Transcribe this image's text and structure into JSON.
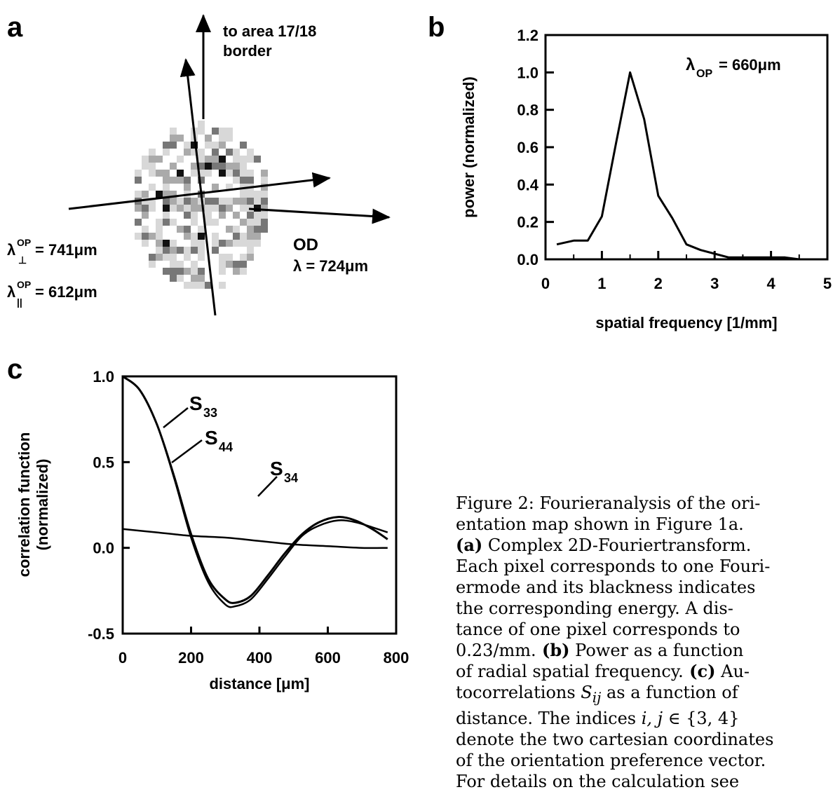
{
  "panel_a": {
    "letter": "a",
    "arrow_top_label": [
      "to area 17/18",
      "border"
    ],
    "od_label": "OD",
    "od_lambda": "λ = 724μm",
    "lambda_perp": {
      "main": "λ",
      "sup": "OP",
      "sub": "⊥",
      "value": " = 741μm"
    },
    "lambda_par": {
      "main": "λ",
      "sup": "OP",
      "sub": "||",
      "value": " = 612μm"
    }
  },
  "panel_b": {
    "letter": "b",
    "annotation": {
      "main": "λ",
      "sub": "OP",
      "value": " = 660μm"
    }
  },
  "panel_c": {
    "letter": "c",
    "curve_labels": {
      "s33": "S",
      "s33_sub": "33",
      "s44": "S",
      "s44_sub": "44",
      "s34": "S",
      "s34_sub": "34"
    }
  },
  "chart_data": [
    {
      "type": "line",
      "panel": "b",
      "xlabel": "spatial frequency [1/mm]",
      "ylabel": "power (normalized)",
      "xlim": [
        0,
        5
      ],
      "ylim": [
        0,
        1.2
      ],
      "xticks": [
        "0",
        "1",
        "2",
        "3",
        "4",
        "5"
      ],
      "yticks": [
        "0.0",
        "0.2",
        "0.4",
        "0.6",
        "0.8",
        "1.0",
        "1.2"
      ],
      "series": [
        {
          "x": [
            0.2,
            0.5,
            0.75,
            1.0,
            1.25,
            1.5,
            1.75,
            2.0,
            2.25,
            2.5,
            2.75,
            3.0,
            3.25,
            3.5,
            3.75,
            4.0,
            4.25,
            4.5,
            4.75,
            5.0
          ],
          "values": [
            0.08,
            0.1,
            0.1,
            0.23,
            0.62,
            1.0,
            0.75,
            0.34,
            0.22,
            0.08,
            0.05,
            0.03,
            0.01,
            0.01,
            0.01,
            0.01,
            0.01,
            0.0,
            0.0,
            0.0
          ]
        }
      ]
    },
    {
      "type": "line",
      "panel": "c",
      "xlabel": "distance [μm]",
      "ylabel": [
        "correlation function",
        "(normalized)"
      ],
      "xlim": [
        0,
        800
      ],
      "ylim": [
        -0.5,
        1.0
      ],
      "xticks": [
        "0",
        "200",
        "400",
        "600",
        "800"
      ],
      "yticks": [
        "-0.5",
        "0.0",
        "0.5",
        "1.0"
      ],
      "series": [
        {
          "x": [
            0,
            50,
            100,
            150,
            200,
            250,
            300,
            330,
            375,
            425,
            475,
            525,
            575,
            630,
            680,
            730,
            775
          ],
          "values": [
            1.0,
            0.92,
            0.72,
            0.42,
            0.08,
            -0.18,
            -0.3,
            -0.32,
            -0.28,
            -0.16,
            -0.03,
            0.08,
            0.15,
            0.18,
            0.16,
            0.11,
            0.05
          ]
        },
        {
          "x": [
            0,
            50,
            100,
            150,
            200,
            250,
            300,
            330,
            375,
            425,
            475,
            525,
            575,
            630,
            680,
            730,
            775
          ],
          "values": [
            1.0,
            0.92,
            0.72,
            0.41,
            0.06,
            -0.2,
            -0.33,
            -0.34,
            -0.3,
            -0.18,
            -0.05,
            0.07,
            0.13,
            0.16,
            0.15,
            0.12,
            0.09
          ]
        },
        {
          "x": [
            0,
            100,
            200,
            300,
            400,
            500,
            600,
            700,
            775
          ],
          "values": [
            0.11,
            0.09,
            0.07,
            0.06,
            0.04,
            0.02,
            0.01,
            0.0,
            0.0
          ]
        }
      ]
    }
  ],
  "caption": {
    "l1": "Figure 2: Fourieranalysis of the ori-",
    "l2": "entation map shown in Figure 1a.",
    "l3_bold": "(a)",
    "l3": " Complex 2D-Fouriertransform.",
    "l4": "Each pixel corresponds to one Fouri-",
    "l5": "ermode and its blackness indicates",
    "l6": "the corresponding energy.   A dis-",
    "l7": "tance of one pixel corresponds to",
    "l8": "0.23/mm.",
    "l8_bold": " (b)",
    "l8b": " Power as a function",
    "l9": "of radial spatial frequency.",
    "l9_bold": " (c)",
    "l9b": " Au-",
    "l10a": "tocorrelations ",
    "l10_math": "S",
    "l10_sub": "ij",
    "l10b": " as a function of",
    "l11a": "distance.  The indices ",
    "l11_math": "i, j",
    "l11b": " ∈ {3, 4}",
    "l12": "denote the two cartesian coordinates",
    "l13": "of the orientation preference vector.",
    "l14": "For  details  on  the  calculation  see"
  }
}
